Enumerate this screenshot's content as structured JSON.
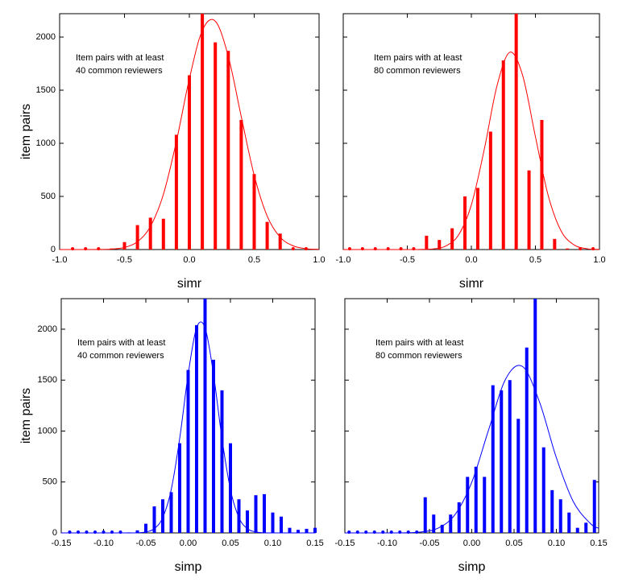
{
  "chart_data": [
    {
      "type": "bar",
      "color": "#ff0000",
      "x": [
        -0.9,
        -0.8,
        -0.7,
        -0.6,
        -0.5,
        -0.4,
        -0.3,
        -0.2,
        -0.1,
        0.0,
        0.1,
        0.2,
        0.3,
        0.4,
        0.5,
        0.6,
        0.7,
        0.8,
        0.9
      ],
      "values": [
        0,
        0,
        0,
        10,
        70,
        230,
        300,
        290,
        1080,
        1640,
        2220,
        1950,
        1870,
        1220,
        710,
        260,
        150,
        0,
        0
      ],
      "fit": {
        "x": [
          -1.0,
          -0.9,
          -0.8,
          -0.7,
          -0.6,
          -0.5,
          -0.4,
          -0.3,
          -0.2,
          -0.1,
          0.0,
          0.1,
          0.2,
          0.3,
          0.4,
          0.5,
          0.6,
          0.7,
          0.8,
          0.9,
          1.0
        ],
        "values": [
          0,
          0,
          0,
          1,
          4,
          20,
          74,
          218,
          520,
          1017,
          1607,
          2062,
          2150,
          1820,
          1252,
          698,
          315,
          116,
          35,
          8,
          2
        ]
      },
      "xlim": [
        -1,
        1
      ],
      "ylim": [
        0,
        2220
      ],
      "xticks": [
        {
          "value": -1,
          "label": "-1.0"
        },
        -0.5,
        {
          "value": 0,
          "label": "0.0"
        },
        0.5,
        {
          "value": 1,
          "label": "1.0"
        }
      ],
      "yticks": [
        0,
        500,
        1000,
        1500,
        2000
      ],
      "ytick_labels": true,
      "xlabel": "simr",
      "ylabel": "item pairs",
      "annotation": [
        "Item pairs with at least",
        "40 common reviewers"
      ]
    },
    {
      "type": "bar",
      "color": "#ff0000",
      "x": [
        -0.95,
        -0.85,
        -0.75,
        -0.65,
        -0.55,
        -0.45,
        -0.35,
        -0.25,
        -0.15,
        -0.05,
        0.05,
        0.15,
        0.25,
        0.35,
        0.45,
        0.55,
        0.65,
        0.75,
        0.85,
        0.95
      ],
      "values": [
        0,
        0,
        0,
        0,
        0,
        0,
        130,
        90,
        200,
        500,
        580,
        1110,
        1780,
        2220,
        745,
        1220,
        100,
        10,
        0,
        0
      ],
      "fit": {
        "x": [
          -1.0,
          -0.9,
          -0.8,
          -0.7,
          -0.6,
          -0.5,
          -0.4,
          -0.3,
          -0.2,
          -0.1,
          0.0,
          0.1,
          0.2,
          0.3,
          0.4,
          0.5,
          0.6,
          0.7,
          0.8,
          0.9,
          1.0
        ],
        "values": [
          0,
          0,
          0,
          0,
          0,
          0,
          1,
          6,
          33,
          137,
          420,
          938,
          1541,
          1857,
          1640,
          1063,
          508,
          176,
          45,
          8,
          1
        ]
      },
      "xlim": [
        -1,
        1
      ],
      "ylim": [
        0,
        2220
      ],
      "xticks": [
        {
          "value": -1,
          "label": "-1.0"
        },
        -0.5,
        {
          "value": 0,
          "label": "0.0"
        },
        0.5,
        {
          "value": 1,
          "label": "1.0"
        }
      ],
      "yticks": [
        0,
        500,
        1000,
        1500,
        2000
      ],
      "ytick_labels": false,
      "xlabel": "simr",
      "annotation": [
        "Item pairs with at least",
        "80 common reviewers"
      ]
    },
    {
      "type": "bar",
      "color": "#0000ff",
      "x": [
        -0.14,
        -0.13,
        -0.12,
        -0.11,
        -0.1,
        -0.09,
        -0.08,
        -0.07,
        -0.06,
        -0.05,
        -0.04,
        -0.03,
        -0.02,
        -0.01,
        0.0,
        0.01,
        0.02,
        0.03,
        0.04,
        0.05,
        0.06,
        0.07,
        0.08,
        0.09,
        0.1,
        0.11,
        0.12,
        0.13,
        0.14,
        0.15
      ],
      "values": [
        0,
        0,
        0,
        0,
        0,
        0,
        0,
        5,
        25,
        90,
        260,
        330,
        400,
        880,
        1600,
        2040,
        2300,
        1700,
        1400,
        880,
        330,
        220,
        370,
        380,
        200,
        160,
        50,
        30,
        40,
        50
      ],
      "fit": {
        "x": [
          -0.15,
          -0.14,
          -0.13,
          -0.12,
          -0.11,
          -0.1,
          -0.09,
          -0.08,
          -0.07,
          -0.06,
          -0.05,
          -0.04,
          -0.03,
          -0.02,
          -0.01,
          0.0,
          0.01,
          0.02,
          0.03,
          0.04,
          0.05,
          0.06,
          0.07,
          0.08,
          0.09,
          0.1,
          0.11,
          0.12,
          0.13,
          0.14,
          0.15
        ],
        "values": [
          0,
          0,
          0,
          0,
          0,
          0,
          0,
          0,
          0,
          1,
          9,
          41,
          151,
          425,
          926,
          1555,
          2014,
          2014,
          1555,
          926,
          425,
          151,
          41,
          9,
          1,
          0,
          0,
          0,
          0,
          0,
          0
        ]
      },
      "xlim": [
        -0.15,
        0.15
      ],
      "ylim": [
        0,
        2300
      ],
      "xticks": [
        -0.15,
        {
          "value": -0.1,
          "label": "-0.10"
        },
        -0.05,
        {
          "value": 0,
          "label": "0.00"
        },
        0.05,
        {
          "value": 0.1,
          "label": "0.10"
        },
        0.15
      ],
      "yticks": [
        0,
        500,
        1000,
        1500,
        2000
      ],
      "ytick_labels": true,
      "xlabel": "simp",
      "ylabel": "item pairs",
      "annotation": [
        "Item pairs with at least",
        "40 common reviewers"
      ]
    },
    {
      "type": "bar",
      "color": "#0000ff",
      "x": [
        -0.145,
        -0.135,
        -0.125,
        -0.115,
        -0.105,
        -0.095,
        -0.085,
        -0.075,
        -0.065,
        -0.055,
        -0.045,
        -0.035,
        -0.025,
        -0.015,
        -0.005,
        0.005,
        0.015,
        0.025,
        0.035,
        0.045,
        0.055,
        0.065,
        0.075,
        0.085,
        0.095,
        0.105,
        0.115,
        0.125,
        0.135,
        0.145
      ],
      "values": [
        0,
        0,
        0,
        0,
        0,
        0,
        0,
        0,
        0,
        350,
        180,
        80,
        180,
        300,
        550,
        650,
        550,
        1450,
        1400,
        1500,
        1120,
        1820,
        2300,
        840,
        420,
        330,
        200,
        50,
        100,
        520
      ],
      "fit": {
        "x": [
          -0.15,
          -0.14,
          -0.12,
          -0.1,
          -0.08,
          -0.06,
          -0.04,
          -0.02,
          0.0,
          0.02,
          0.04,
          0.06,
          0.08,
          0.1,
          0.12,
          0.14,
          0.15
        ],
        "values": [
          0,
          0,
          0,
          0,
          1,
          9,
          46,
          177,
          497,
          1014,
          1510,
          1634,
          1287,
          738,
          307,
          94,
          46
        ]
      },
      "xlim": [
        -0.15,
        0.15
      ],
      "ylim": [
        0,
        2300
      ],
      "xticks": [
        -0.15,
        {
          "value": -0.1,
          "label": "-0.10"
        },
        -0.05,
        {
          "value": 0,
          "label": "0.00"
        },
        0.05,
        {
          "value": 0.1,
          "label": "0.10"
        },
        0.15
      ],
      "yticks": [
        0,
        500,
        1000,
        1500,
        2000
      ],
      "ytick_labels": false,
      "xlabel": "simp",
      "annotation": [
        "Item pairs with at least",
        "80 common reviewers"
      ]
    }
  ]
}
